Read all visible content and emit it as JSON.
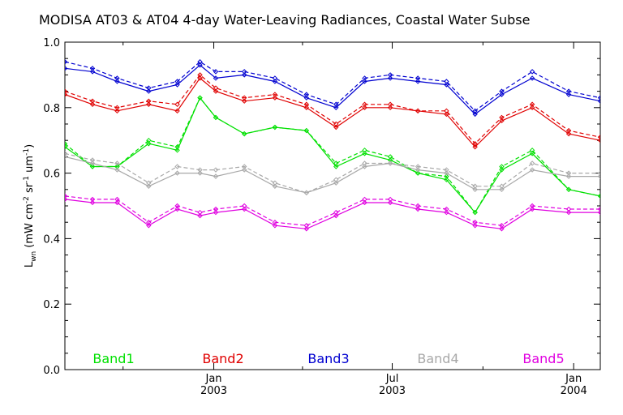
{
  "chart_data": {
    "type": "line",
    "title": "MODISA AT03 & AT04 4-day Water-Leaving Radiances, Coastal Water Subse",
    "ylabel": "L_wn (mW cm^-2 sr^-1 um^-1)",
    "ylabel_parts": [
      "L",
      "wn",
      " (mW cm",
      "-2",
      " sr",
      "-1",
      " um",
      "-1",
      ")"
    ],
    "ylim": [
      0.0,
      1.0
    ],
    "yticks": [
      "0.0",
      "0.2",
      "0.4",
      "0.6",
      "0.8",
      "1.0"
    ],
    "xlim": [
      "2002-08-03",
      "2004-01-28"
    ],
    "xtick_labels": [
      {
        "month": "Jan",
        "year": "2003",
        "date": "2003-01-01"
      },
      {
        "month": "Jul",
        "year": "2003",
        "date": "2003-07-01"
      },
      {
        "month": "Jan",
        "year": "2004",
        "date": "2004-01-01"
      }
    ],
    "minor_ticks": [
      "2002-10-01",
      "2003-04-01",
      "2003-10-01"
    ],
    "x": [
      "2002-08-03",
      "2002-08-31",
      "2002-09-25",
      "2002-10-27",
      "2002-11-25",
      "2002-12-18",
      "2003-01-03",
      "2003-02-01",
      "2003-03-04",
      "2003-04-05",
      "2003-05-05",
      "2003-06-03",
      "2003-06-29",
      "2003-07-27",
      "2003-08-25",
      "2003-09-23",
      "2003-10-20",
      "2003-11-20",
      "2003-12-27",
      "2004-01-28"
    ],
    "series": [
      {
        "name": "Band1",
        "color": "#00e000",
        "at03": [
          0.68,
          0.62,
          0.62,
          0.69,
          0.67,
          0.83,
          0.77,
          0.72,
          0.74,
          0.73,
          0.62,
          0.66,
          0.64,
          0.6,
          0.58,
          0.48,
          0.61,
          0.66,
          0.55,
          0.53
        ],
        "at04": [
          0.69,
          0.62,
          0.62,
          0.7,
          0.68,
          0.83,
          0.77,
          0.72,
          0.74,
          0.73,
          0.63,
          0.67,
          0.65,
          0.6,
          0.59,
          0.48,
          0.62,
          0.67,
          0.55,
          0.53
        ]
      },
      {
        "name": "Band2",
        "color": "#e00000",
        "at03": [
          0.84,
          0.81,
          0.79,
          0.81,
          0.79,
          0.89,
          0.85,
          0.82,
          0.83,
          0.8,
          0.74,
          0.8,
          0.8,
          0.79,
          0.78,
          0.68,
          0.76,
          0.8,
          0.72,
          0.7
        ],
        "at04": [
          0.85,
          0.82,
          0.8,
          0.82,
          0.81,
          0.9,
          0.86,
          0.83,
          0.84,
          0.81,
          0.75,
          0.81,
          0.81,
          0.79,
          0.79,
          0.69,
          0.77,
          0.81,
          0.73,
          0.71
        ]
      },
      {
        "name": "Band3",
        "color": "#0000d0",
        "at03": [
          0.92,
          0.91,
          0.88,
          0.85,
          0.87,
          0.93,
          0.89,
          0.9,
          0.88,
          0.83,
          0.8,
          0.88,
          0.89,
          0.88,
          0.87,
          0.78,
          0.84,
          0.89,
          0.84,
          0.82
        ],
        "at04": [
          0.94,
          0.92,
          0.89,
          0.86,
          0.88,
          0.94,
          0.91,
          0.91,
          0.89,
          0.84,
          0.81,
          0.89,
          0.9,
          0.89,
          0.88,
          0.79,
          0.85,
          0.91,
          0.85,
          0.83
        ]
      },
      {
        "name": "Band4",
        "color": "#a8a8a8",
        "at03": [
          0.65,
          0.63,
          0.61,
          0.56,
          0.6,
          0.6,
          0.59,
          0.61,
          0.56,
          0.54,
          0.57,
          0.62,
          0.63,
          0.61,
          0.6,
          0.55,
          0.55,
          0.61,
          0.59,
          0.59
        ],
        "at04": [
          0.66,
          0.64,
          0.63,
          0.57,
          0.62,
          0.61,
          0.61,
          0.62,
          0.57,
          0.54,
          0.58,
          0.63,
          0.63,
          0.62,
          0.61,
          0.56,
          0.56,
          0.63,
          0.6,
          0.6
        ]
      },
      {
        "name": "Band5",
        "color": "#e000e0",
        "at03": [
          0.52,
          0.51,
          0.51,
          0.44,
          0.49,
          0.47,
          0.48,
          0.49,
          0.44,
          0.43,
          0.47,
          0.51,
          0.51,
          0.49,
          0.48,
          0.44,
          0.43,
          0.49,
          0.48,
          0.48
        ],
        "at04": [
          0.53,
          0.52,
          0.52,
          0.45,
          0.5,
          0.48,
          0.49,
          0.5,
          0.45,
          0.44,
          0.48,
          0.52,
          0.52,
          0.5,
          0.49,
          0.45,
          0.44,
          0.5,
          0.49,
          0.49
        ]
      }
    ],
    "legend": [
      {
        "label": "Band1",
        "color": "#00e000"
      },
      {
        "label": "Band2",
        "color": "#e00000"
      },
      {
        "label": "Band3",
        "color": "#0000d0"
      },
      {
        "label": "Band4",
        "color": "#a8a8a8"
      },
      {
        "label": "Band5",
        "color": "#e000e0"
      }
    ],
    "legend_position": "bottom-inside",
    "grid": false
  }
}
